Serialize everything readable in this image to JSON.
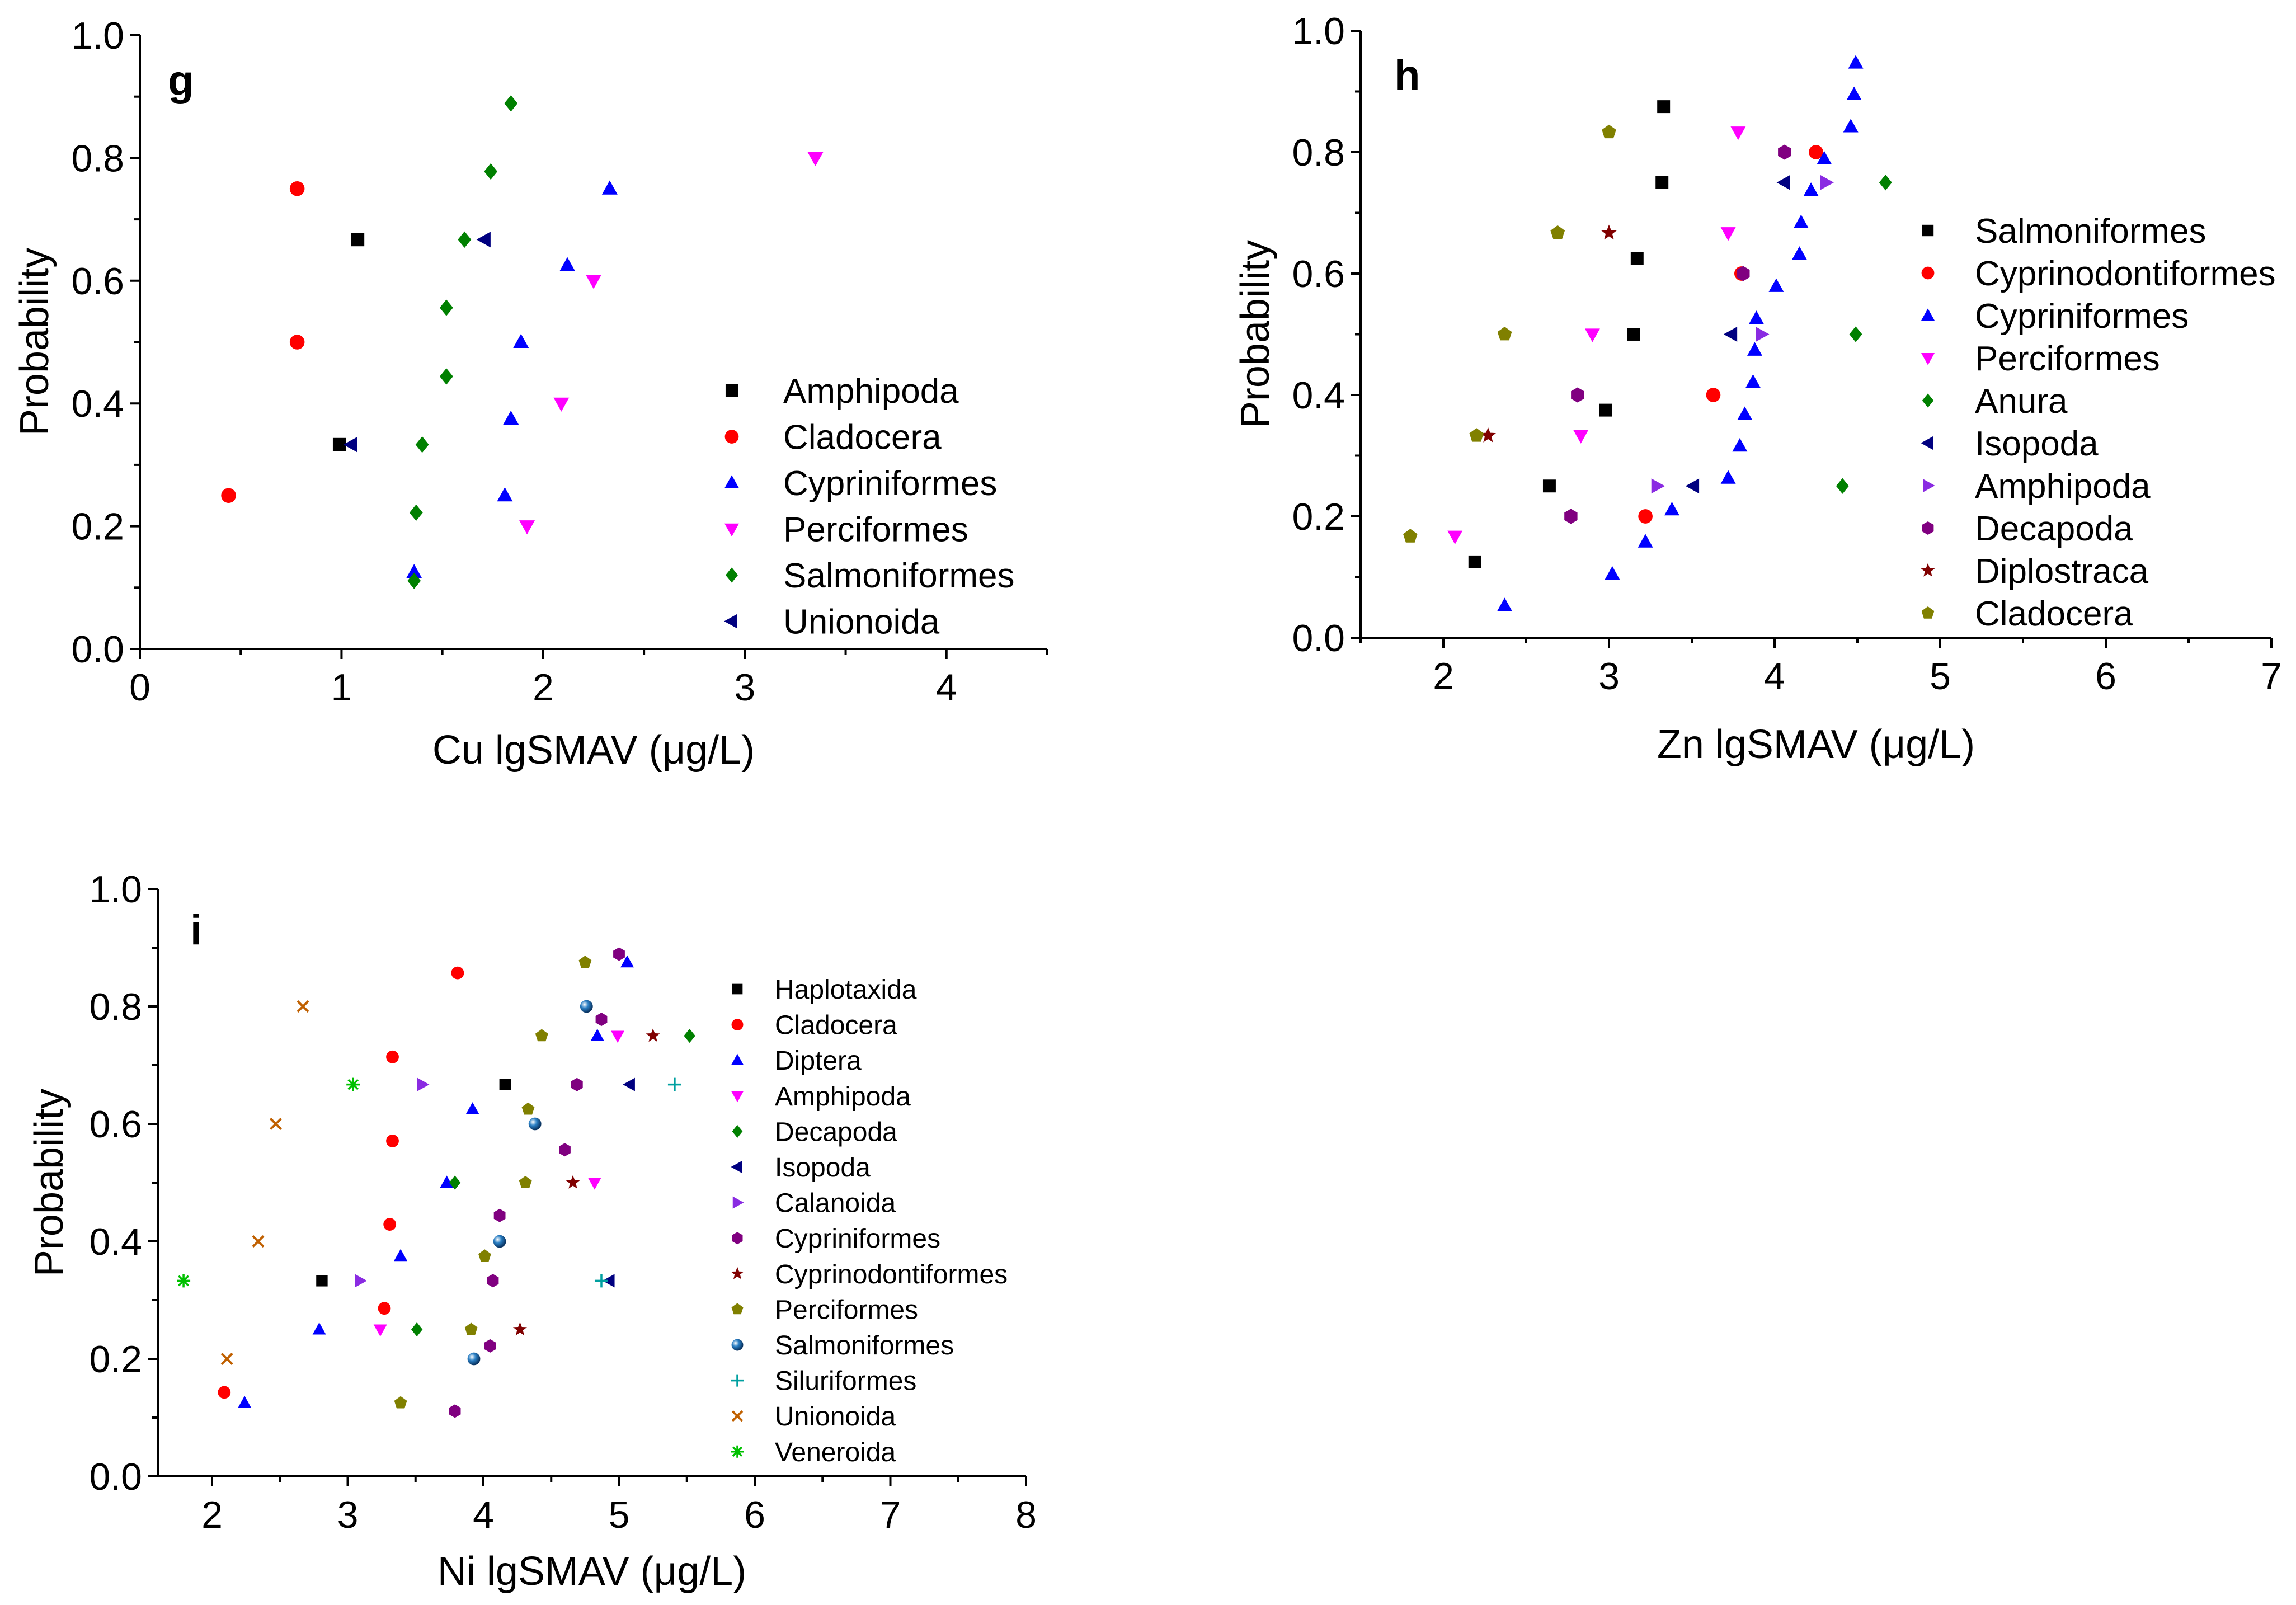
{
  "chart_data": [
    {
      "type": "scatter",
      "panel": "g",
      "xlabel": "Cu lgSMAV (μg/L)",
      "ylabel": "Probability",
      "xlim": [
        0,
        4.5
      ],
      "ylim": [
        0,
        1.0
      ],
      "xticks": [
        "0",
        "1",
        "2",
        "3",
        "4"
      ],
      "yticks": [
        "0.0",
        "0.2",
        "0.4",
        "0.6",
        "0.8",
        "1.0"
      ],
      "series": [
        {
          "name": "Amphipoda",
          "color": "#000000",
          "marker": "square",
          "points": [
            [
              1.08,
              0.667
            ],
            [
              0.99,
              0.333
            ]
          ]
        },
        {
          "name": "Cladocera",
          "color": "#ff0000",
          "marker": "circle",
          "points": [
            [
              0.78,
              0.75
            ],
            [
              0.78,
              0.5
            ],
            [
              0.44,
              0.25
            ]
          ]
        },
        {
          "name": "Cypriniformes",
          "color": "#0000ff",
          "marker": "triangle-up",
          "points": [
            [
              2.33,
              0.75
            ],
            [
              2.12,
              0.625
            ],
            [
              1.89,
              0.5
            ],
            [
              1.84,
              0.375
            ],
            [
              1.81,
              0.25
            ],
            [
              1.36,
              0.125
            ]
          ]
        },
        {
          "name": "Perciformes",
          "color": "#ff00ff",
          "marker": "triangle-down",
          "points": [
            [
              3.35,
              0.8
            ],
            [
              2.25,
              0.6
            ],
            [
              2.09,
              0.4
            ],
            [
              1.92,
              0.2
            ]
          ]
        },
        {
          "name": "Salmoniformes",
          "color": "#008000",
          "marker": "diamond",
          "points": [
            [
              1.84,
              0.889
            ],
            [
              1.74,
              0.778
            ],
            [
              1.61,
              0.667
            ],
            [
              1.52,
              0.556
            ],
            [
              1.52,
              0.444
            ],
            [
              1.4,
              0.333
            ],
            [
              1.37,
              0.222
            ],
            [
              1.36,
              0.111
            ]
          ]
        },
        {
          "name": "Unionoida",
          "color": "#000080",
          "marker": "triangle-left",
          "points": [
            [
              1.71,
              0.667
            ],
            [
              1.05,
              0.333
            ]
          ]
        }
      ]
    },
    {
      "type": "scatter",
      "panel": "h",
      "xlabel": "Zn lgSMAV (μg/L)",
      "ylabel": "Probability",
      "xlim": [
        1.5,
        7
      ],
      "ylim": [
        0,
        1.0
      ],
      "xticks": [
        "2",
        "3",
        "4",
        "5",
        "6",
        "7"
      ],
      "yticks": [
        "0.0",
        "0.2",
        "0.4",
        "0.6",
        "0.8",
        "1.0"
      ],
      "series": [
        {
          "name": "Salmoniformes",
          "color": "#000000",
          "marker": "square",
          "points": [
            [
              3.33,
              0.875
            ],
            [
              3.32,
              0.75
            ],
            [
              3.17,
              0.625
            ],
            [
              3.15,
              0.5
            ],
            [
              2.98,
              0.375
            ],
            [
              2.64,
              0.25
            ],
            [
              2.19,
              0.125
            ]
          ]
        },
        {
          "name": "Cyprinodontiformes",
          "color": "#ff0000",
          "marker": "circle",
          "points": [
            [
              4.25,
              0.8
            ],
            [
              3.8,
              0.6
            ],
            [
              3.63,
              0.4
            ],
            [
              3.22,
              0.2
            ]
          ]
        },
        {
          "name": "Cypriniformes",
          "color": "#0000ff",
          "marker": "triangle-up",
          "points": [
            [
              4.49,
              0.947
            ],
            [
              4.48,
              0.895
            ],
            [
              4.46,
              0.842
            ],
            [
              4.3,
              0.789
            ],
            [
              4.22,
              0.737
            ],
            [
              4.16,
              0.684
            ],
            [
              4.15,
              0.632
            ],
            [
              4.01,
              0.579
            ],
            [
              3.89,
              0.526
            ],
            [
              3.88,
              0.474
            ],
            [
              3.87,
              0.421
            ],
            [
              3.82,
              0.368
            ],
            [
              3.79,
              0.316
            ],
            [
              3.72,
              0.263
            ],
            [
              3.38,
              0.211
            ],
            [
              3.22,
              0.158
            ],
            [
              3.02,
              0.105
            ],
            [
              2.37,
              0.053
            ]
          ]
        },
        {
          "name": "Perciformes",
          "color": "#ff00ff",
          "marker": "triangle-down",
          "points": [
            [
              3.78,
              0.833
            ],
            [
              3.72,
              0.667
            ],
            [
              2.9,
              0.5
            ],
            [
              2.83,
              0.333
            ],
            [
              2.07,
              0.167
            ]
          ]
        },
        {
          "name": "Anura",
          "color": "#008000",
          "marker": "diamond",
          "points": [
            [
              4.67,
              0.75
            ],
            [
              4.49,
              0.5
            ],
            [
              4.41,
              0.25
            ]
          ]
        },
        {
          "name": "Isopoda",
          "color": "#000080",
          "marker": "triangle-left",
          "points": [
            [
              4.06,
              0.75
            ],
            [
              3.74,
              0.5
            ],
            [
              3.51,
              0.25
            ]
          ]
        },
        {
          "name": "Amphipoda",
          "color": "#8a2be2",
          "marker": "triangle-right",
          "points": [
            [
              4.31,
              0.75
            ],
            [
              3.92,
              0.5
            ],
            [
              3.29,
              0.25
            ]
          ]
        },
        {
          "name": "Decapoda",
          "color": "#800080",
          "marker": "hexagon",
          "points": [
            [
              4.06,
              0.8
            ],
            [
              3.81,
              0.6
            ],
            [
              2.81,
              0.4
            ],
            [
              2.77,
              0.2
            ]
          ]
        },
        {
          "name": "Diplostraca",
          "color": "#800000",
          "marker": "star",
          "points": [
            [
              3.0,
              0.667
            ],
            [
              2.27,
              0.333
            ]
          ]
        },
        {
          "name": "Cladocera",
          "color": "#808000",
          "marker": "pentagon",
          "points": [
            [
              3.0,
              0.833
            ],
            [
              2.69,
              0.667
            ],
            [
              2.37,
              0.5
            ],
            [
              2.2,
              0.333
            ],
            [
              1.8,
              0.167
            ]
          ]
        }
      ]
    },
    {
      "type": "scatter",
      "panel": "i",
      "xlabel": "Ni lgSMAV (μg/L)",
      "ylabel": "Probability",
      "xlim": [
        1.6,
        8
      ],
      "ylim": [
        0,
        1.0
      ],
      "xticks": [
        "2",
        "3",
        "4",
        "5",
        "6",
        "7",
        "8"
      ],
      "yticks": [
        "0.0",
        "0.2",
        "0.4",
        "0.6",
        "0.8",
        "1.0"
      ],
      "series": [
        {
          "name": "Haplotaxida",
          "color": "#000000",
          "marker": "square",
          "points": [
            [
              4.16,
              0.667
            ],
            [
              2.81,
              0.333
            ]
          ]
        },
        {
          "name": "Cladocera",
          "color": "#ff0000",
          "marker": "circle",
          "points": [
            [
              3.81,
              0.857
            ],
            [
              3.33,
              0.714
            ],
            [
              3.33,
              0.571
            ],
            [
              3.31,
              0.429
            ],
            [
              3.27,
              0.286
            ],
            [
              2.09,
              0.143
            ]
          ]
        },
        {
          "name": "Diptera",
          "color": "#0000ff",
          "marker": "triangle-up",
          "points": [
            [
              5.06,
              0.875
            ],
            [
              4.84,
              0.75
            ],
            [
              3.92,
              0.625
            ],
            [
              3.73,
              0.5
            ],
            [
              3.39,
              0.375
            ],
            [
              2.79,
              0.25
            ],
            [
              2.24,
              0.125
            ]
          ]
        },
        {
          "name": "Amphipoda",
          "color": "#ff00ff",
          "marker": "triangle-down",
          "points": [
            [
              4.99,
              0.75
            ],
            [
              4.82,
              0.5
            ],
            [
              3.24,
              0.25
            ]
          ]
        },
        {
          "name": "Decapoda",
          "color": "#008000",
          "marker": "diamond",
          "points": [
            [
              5.52,
              0.75
            ],
            [
              3.79,
              0.5
            ],
            [
              3.51,
              0.25
            ]
          ]
        },
        {
          "name": "Isopoda",
          "color": "#000080",
          "marker": "triangle-left",
          "points": [
            [
              5.08,
              0.667
            ],
            [
              4.93,
              0.333
            ]
          ]
        },
        {
          "name": "Calanoida",
          "color": "#8a2be2",
          "marker": "triangle-right",
          "points": [
            [
              3.55,
              0.667
            ],
            [
              3.09,
              0.333
            ]
          ]
        },
        {
          "name": "Cypriniformes",
          "color": "#800080",
          "marker": "hexagon",
          "points": [
            [
              5.0,
              0.889
            ],
            [
              4.87,
              0.778
            ],
            [
              4.69,
              0.667
            ],
            [
              4.6,
              0.556
            ],
            [
              4.12,
              0.444
            ],
            [
              4.07,
              0.333
            ],
            [
              4.05,
              0.222
            ],
            [
              3.79,
              0.111
            ]
          ]
        },
        {
          "name": "Cyprinodontiformes",
          "color": "#800000",
          "marker": "star",
          "points": [
            [
              5.25,
              0.75
            ],
            [
              4.66,
              0.5
            ],
            [
              4.27,
              0.25
            ]
          ]
        },
        {
          "name": "Perciformes",
          "color": "#808000",
          "marker": "pentagon",
          "points": [
            [
              4.75,
              0.875
            ],
            [
              4.43,
              0.75
            ],
            [
              4.33,
              0.625
            ],
            [
              4.31,
              0.5
            ],
            [
              4.01,
              0.375
            ],
            [
              3.91,
              0.25
            ],
            [
              3.39,
              0.125
            ]
          ]
        },
        {
          "name": "Salmoniformes",
          "color": "#1f6fb4",
          "marker": "sphere",
          "points": [
            [
              4.76,
              0.8
            ],
            [
              4.38,
              0.6
            ],
            [
              4.12,
              0.4
            ],
            [
              3.93,
              0.2
            ]
          ]
        },
        {
          "name": "Siluriformes",
          "color": "#00a0a0",
          "marker": "plus",
          "points": [
            [
              5.41,
              0.667
            ],
            [
              4.87,
              0.333
            ]
          ]
        },
        {
          "name": "Unionoida",
          "color": "#c06000",
          "marker": "x",
          "points": [
            [
              2.67,
              0.8
            ],
            [
              2.47,
              0.6
            ],
            [
              2.34,
              0.4
            ],
            [
              2.11,
              0.2
            ]
          ]
        },
        {
          "name": "Veneroida",
          "color": "#00c000",
          "marker": "asterisk",
          "points": [
            [
              3.04,
              0.667
            ],
            [
              1.79,
              0.333
            ]
          ]
        }
      ]
    }
  ]
}
